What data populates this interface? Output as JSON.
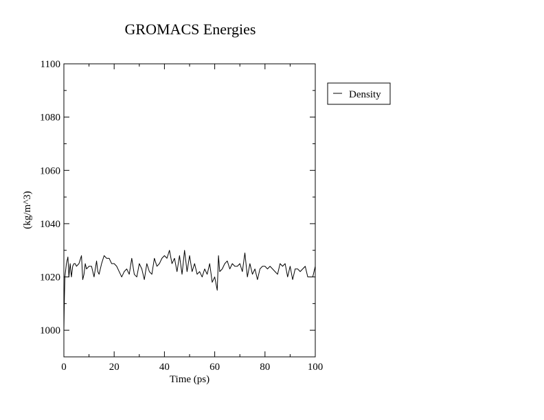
{
  "chart_data": {
    "type": "line",
    "title": "GROMACS Energies",
    "xlabel": "Time (ps)",
    "ylabel": "(kg/m^3)",
    "xlim": [
      0,
      100
    ],
    "ylim": [
      990,
      1100
    ],
    "x_ticks": [
      0,
      20,
      40,
      60,
      80,
      100
    ],
    "x_tick_labels": [
      "0",
      "20",
      "40",
      "60",
      "80",
      "100"
    ],
    "y_ticks": [
      1000,
      1020,
      1040,
      1060,
      1080,
      1100
    ],
    "y_tick_labels": [
      "1000",
      "1020",
      "1040",
      "1060",
      "1080",
      "1100"
    ],
    "grid": false,
    "legend_position": "top-right, outside plot",
    "series": [
      {
        "name": "Density",
        "color": "#000000",
        "x": [
          0,
          0.2,
          0.4,
          1,
          1.6,
          2,
          2.5,
          3,
          3.5,
          4,
          4.5,
          5,
          6,
          7,
          7.5,
          8,
          8.5,
          9,
          10,
          11,
          11.5,
          12,
          13,
          13.5,
          14,
          15,
          16,
          17,
          18,
          19,
          20,
          21,
          22,
          23,
          24,
          25,
          26,
          27,
          28,
          29,
          30,
          31,
          32,
          33,
          34,
          35,
          36,
          37,
          38,
          39,
          40,
          41,
          42,
          43,
          44,
          45,
          46,
          47,
          48,
          49,
          50,
          51,
          52,
          53,
          54,
          55,
          56,
          57,
          58,
          59,
          60,
          61,
          61.5,
          62,
          63,
          64,
          65,
          66,
          67,
          68,
          69,
          70,
          71,
          72,
          73,
          74,
          75,
          76,
          77,
          78,
          79,
          80,
          81,
          82,
          83,
          84,
          85,
          86,
          87,
          88,
          89,
          90,
          91,
          92,
          93,
          94,
          95,
          96,
          97,
          98,
          99,
          100
        ],
        "y": [
          1000,
          1012,
          1020,
          1025,
          1027.5,
          1020,
          1025,
          1020,
          1024,
          1025,
          1025,
          1024,
          1025,
          1028,
          1019,
          1021,
          1025,
          1023,
          1024,
          1024,
          1022,
          1020,
          1026,
          1022,
          1021,
          1025,
          1028,
          1027,
          1027,
          1025,
          1025,
          1024,
          1022,
          1020,
          1022,
          1023,
          1021,
          1027,
          1021,
          1020,
          1025,
          1023,
          1019,
          1025,
          1022,
          1021,
          1027,
          1024,
          1025,
          1027,
          1028,
          1027,
          1030,
          1025,
          1027,
          1022,
          1028,
          1021,
          1030,
          1022,
          1028,
          1022,
          1025,
          1021,
          1022,
          1020,
          1023,
          1021,
          1025,
          1018,
          1020,
          1015,
          1028,
          1022,
          1023,
          1025,
          1026,
          1023,
          1025,
          1024,
          1024,
          1025,
          1022,
          1029,
          1020,
          1025,
          1021,
          1023,
          1019,
          1023,
          1024,
          1024,
          1023,
          1024,
          1023,
          1022,
          1021,
          1025,
          1024,
          1025,
          1020,
          1024,
          1019,
          1023,
          1023,
          1022,
          1023,
          1024,
          1020,
          1020,
          1020,
          1024
        ]
      }
    ]
  }
}
